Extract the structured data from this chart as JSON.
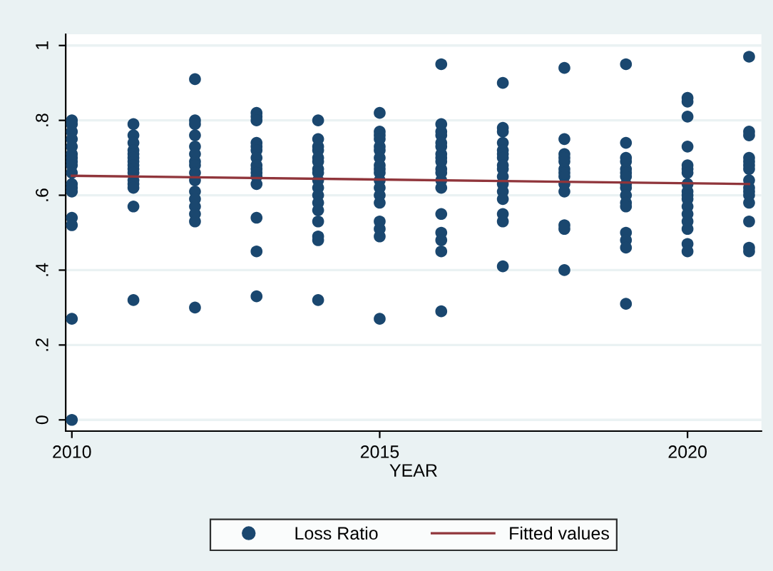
{
  "chart_data": {
    "type": "scatter",
    "xlabel": "YEAR",
    "xlim": [
      2009.9,
      2021.2
    ],
    "xticks": [
      2010,
      2015,
      2020
    ],
    "ylim": [
      -0.03,
      1.03
    ],
    "yticks": [
      0,
      {
        "value": 0.2,
        "label": ".2"
      },
      {
        "value": 0.4,
        "label": ".4"
      },
      {
        "value": 0.6,
        "label": ".6"
      },
      {
        "value": 0.8,
        "label": ".8"
      },
      1
    ],
    "grid": "y",
    "legend": "bottom",
    "series": [
      {
        "name": "Loss Ratio",
        "marker": "circle",
        "color": "#1a476f",
        "x": [
          2010,
          2010,
          2010,
          2010,
          2010,
          2010,
          2010,
          2010,
          2010,
          2010,
          2010,
          2010,
          2010,
          2010,
          2010,
          2010,
          2010,
          2011,
          2011,
          2011,
          2011,
          2011,
          2011,
          2011,
          2011,
          2011,
          2011,
          2011,
          2011,
          2011,
          2011,
          2011,
          2012,
          2012,
          2012,
          2012,
          2012,
          2012,
          2012,
          2012,
          2012,
          2012,
          2012,
          2012,
          2012,
          2012,
          2012,
          2012,
          2013,
          2013,
          2013,
          2013,
          2013,
          2013,
          2013,
          2013,
          2013,
          2013,
          2013,
          2013,
          2013,
          2013,
          2013,
          2014,
          2014,
          2014,
          2014,
          2014,
          2014,
          2014,
          2014,
          2014,
          2014,
          2014,
          2014,
          2014,
          2014,
          2014,
          2014,
          2014,
          2015,
          2015,
          2015,
          2015,
          2015,
          2015,
          2015,
          2015,
          2015,
          2015,
          2015,
          2015,
          2015,
          2015,
          2015,
          2015,
          2015,
          2015,
          2016,
          2016,
          2016,
          2016,
          2016,
          2016,
          2016,
          2016,
          2016,
          2016,
          2016,
          2016,
          2016,
          2016,
          2016,
          2016,
          2016,
          2016,
          2017,
          2017,
          2017,
          2017,
          2017,
          2017,
          2017,
          2017,
          2017,
          2017,
          2017,
          2017,
          2017,
          2017,
          2017,
          2017,
          2018,
          2018,
          2018,
          2018,
          2018,
          2018,
          2018,
          2018,
          2018,
          2018,
          2018,
          2018,
          2018,
          2019,
          2019,
          2019,
          2019,
          2019,
          2019,
          2019,
          2019,
          2019,
          2019,
          2019,
          2019,
          2019,
          2019,
          2019,
          2019,
          2020,
          2020,
          2020,
          2020,
          2020,
          2020,
          2020,
          2020,
          2020,
          2020,
          2020,
          2020,
          2020,
          2020,
          2020,
          2020,
          2020,
          2021,
          2021,
          2021,
          2021,
          2021,
          2021,
          2021,
          2021,
          2021,
          2021,
          2021,
          2021,
          2021,
          2021,
          2021
        ],
        "values": [
          0.8,
          0.79,
          0.77,
          0.75,
          0.73,
          0.71,
          0.7,
          0.69,
          0.68,
          0.66,
          0.63,
          0.62,
          0.61,
          0.54,
          0.52,
          0.27,
          0,
          0.79,
          0.76,
          0.74,
          0.72,
          0.71,
          0.7,
          0.69,
          0.68,
          0.67,
          0.66,
          0.64,
          0.63,
          0.62,
          0.57,
          0.32,
          0.91,
          0.8,
          0.79,
          0.76,
          0.73,
          0.71,
          0.69,
          0.68,
          0.66,
          0.64,
          0.61,
          0.59,
          0.57,
          0.55,
          0.53,
          0.3,
          0.82,
          0.81,
          0.8,
          0.74,
          0.73,
          0.72,
          0.7,
          0.68,
          0.67,
          0.66,
          0.65,
          0.63,
          0.54,
          0.45,
          0.33,
          0.8,
          0.75,
          0.73,
          0.72,
          0.7,
          0.69,
          0.67,
          0.66,
          0.64,
          0.62,
          0.6,
          0.58,
          0.56,
          0.53,
          0.49,
          0.48,
          0.32,
          0.82,
          0.77,
          0.76,
          0.75,
          0.73,
          0.72,
          0.7,
          0.68,
          0.67,
          0.66,
          0.64,
          0.62,
          0.6,
          0.58,
          0.53,
          0.51,
          0.49,
          0.27,
          0.95,
          0.79,
          0.77,
          0.76,
          0.74,
          0.73,
          0.71,
          0.7,
          0.69,
          0.67,
          0.66,
          0.64,
          0.62,
          0.55,
          0.5,
          0.48,
          0.45,
          0.29,
          0.9,
          0.78,
          0.77,
          0.74,
          0.72,
          0.71,
          0.7,
          0.68,
          0.67,
          0.65,
          0.63,
          0.61,
          0.59,
          0.55,
          0.53,
          0.41,
          0.94,
          0.75,
          0.71,
          0.7,
          0.69,
          0.67,
          0.66,
          0.65,
          0.63,
          0.61,
          0.52,
          0.51,
          0.4,
          0.95,
          0.74,
          0.7,
          0.69,
          0.67,
          0.66,
          0.65,
          0.63,
          0.62,
          0.6,
          0.58,
          0.57,
          0.5,
          0.48,
          0.46,
          0.31,
          0.86,
          0.85,
          0.81,
          0.73,
          0.68,
          0.67,
          0.66,
          0.63,
          0.61,
          0.6,
          0.59,
          0.57,
          0.55,
          0.53,
          0.51,
          0.47,
          0.45,
          0.97,
          0.77,
          0.76,
          0.7,
          0.69,
          0.68,
          0.67,
          0.64,
          0.62,
          0.61,
          0.6,
          0.58,
          0.53,
          0.46,
          0.45
        ]
      },
      {
        "name": "Fitted values",
        "type": "line",
        "color": "#90353b",
        "x": [
          2010,
          2021
        ],
        "values": [
          0.652,
          0.63
        ]
      }
    ]
  }
}
